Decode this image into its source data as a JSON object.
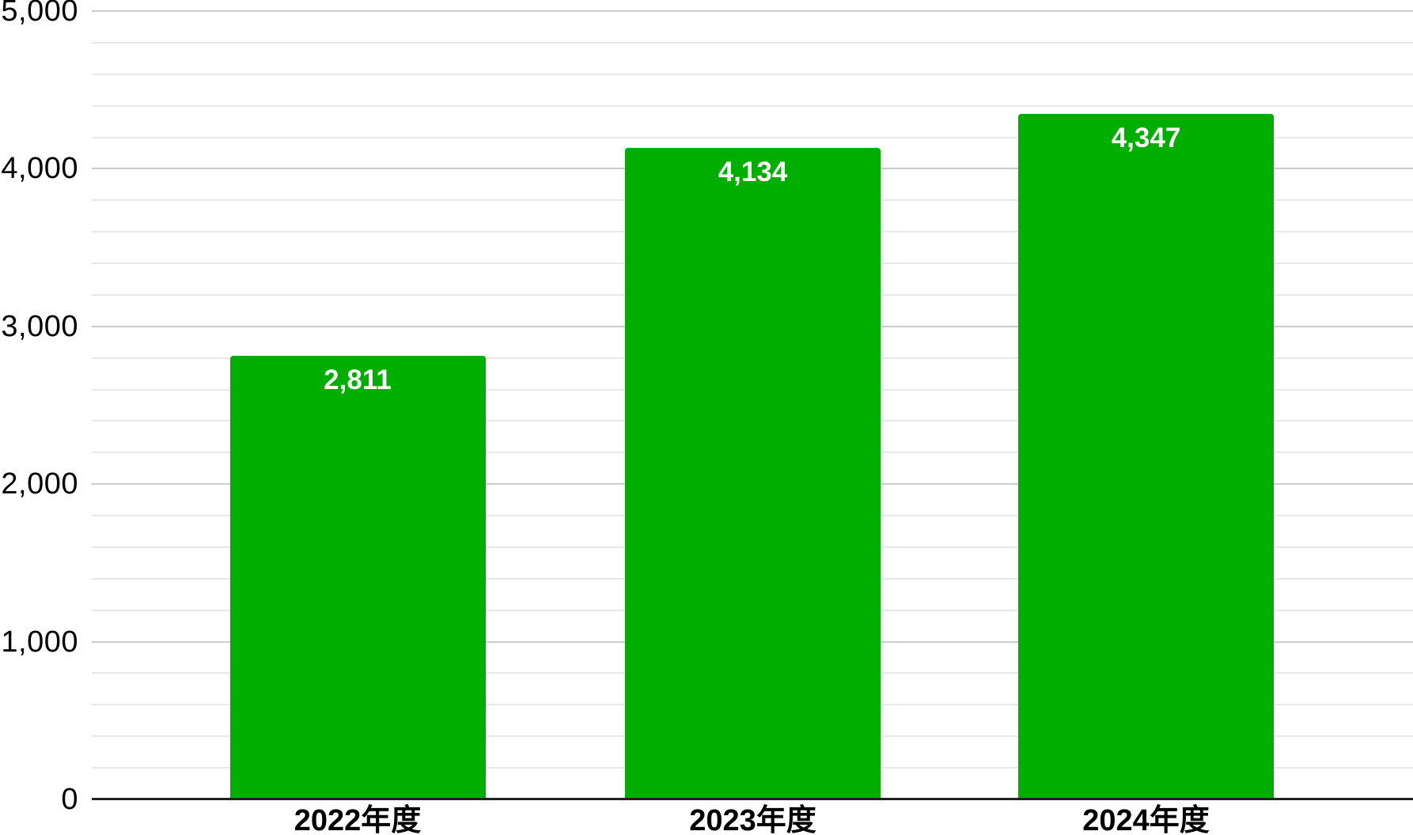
{
  "chart_data": {
    "type": "bar",
    "title": "",
    "xlabel": "",
    "ylabel": "",
    "categories": [
      "2022年度",
      "2023年度",
      "2024年度"
    ],
    "values": [
      2811,
      4134,
      4347
    ],
    "value_labels": [
      "2,811",
      "4,134",
      "4,347"
    ],
    "ylim": [
      0,
      5000
    ],
    "y_ticks": [
      0,
      1000,
      2000,
      3000,
      4000,
      5000
    ],
    "y_tick_labels": [
      "0",
      "1,000",
      "2,000",
      "3,000",
      "4,000",
      "5,000"
    ],
    "grid": {
      "on": true,
      "minor_step": 200,
      "major_step": 1000
    },
    "legend": "none",
    "colors": {
      "bar": "#00AE00",
      "value_label": "#ffffff",
      "axis_line": "#212121",
      "major_grid": "#cccccc",
      "minor_grid": "#e8e8e8",
      "tick_text": "#000000",
      "background": "#ffffff"
    }
  }
}
